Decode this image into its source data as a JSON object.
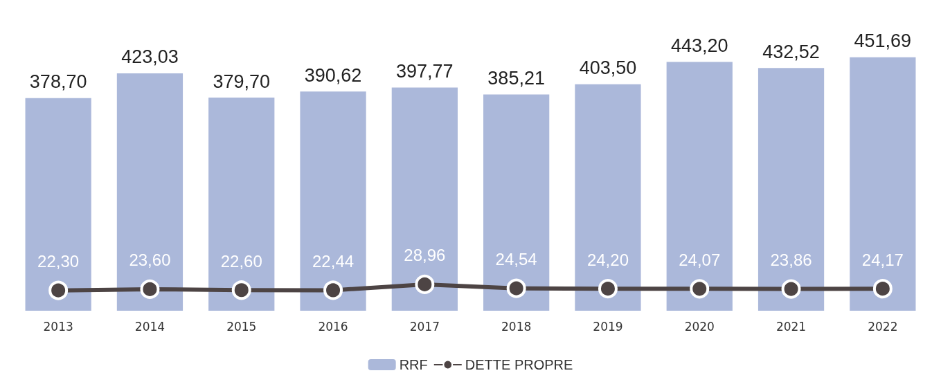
{
  "chart_data": {
    "type": "bar",
    "categories": [
      "2013",
      "2014",
      "2015",
      "2016",
      "2017",
      "2018",
      "2019",
      "2020",
      "2021",
      "2022"
    ],
    "series": [
      {
        "name": "RRF",
        "color": "#abb8da",
        "values": [
          378.7,
          423.03,
          379.7,
          390.62,
          397.77,
          385.21,
          403.5,
          443.2,
          432.52,
          451.69
        ],
        "value_labels": [
          "378,70",
          "423,03",
          "379,70",
          "390,62",
          "397,77",
          "385,21",
          "403,50",
          "443,20",
          "432,52",
          "451,69"
        ]
      },
      {
        "name": "DETTE PROPRE",
        "type": "line",
        "axis": "y2",
        "color": "#4d4444",
        "values": [
          22.3,
          23.6,
          22.6,
          22.44,
          28.96,
          24.54,
          24.2,
          24.07,
          23.86,
          24.17
        ],
        "value_labels": [
          "22,30",
          "23,60",
          "22,60",
          "22,44",
          "28,96",
          "24,54",
          "24,20",
          "24,07",
          "23,86",
          "24,17"
        ]
      }
    ],
    "legend": "bottom",
    "marker": "circle",
    "line_style": "solid"
  }
}
